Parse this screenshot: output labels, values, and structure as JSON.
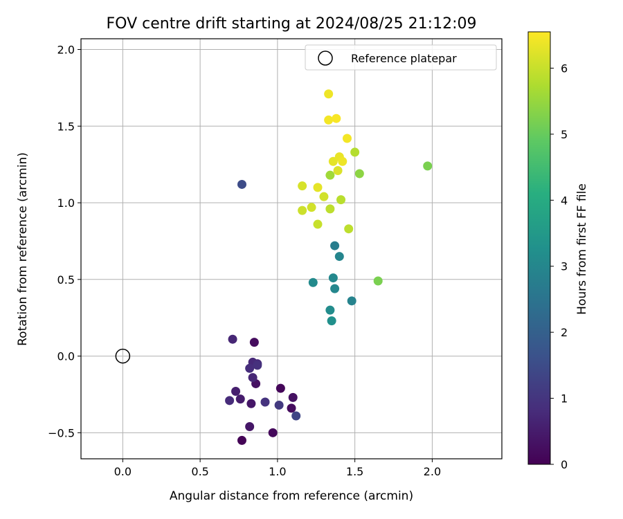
{
  "chart_data": {
    "type": "scatter",
    "title": "FOV centre drift starting at 2024/08/25 21:12:09",
    "xlabel": "Angular distance from reference (arcmin)",
    "ylabel": "Rotation from reference (arcmin)",
    "xlim": [
      -0.27,
      2.45
    ],
    "ylim": [
      -0.67,
      2.07
    ],
    "xticks": [
      0.0,
      0.5,
      1.0,
      1.5,
      2.0
    ],
    "xtick_labels": [
      "0.0",
      "0.5",
      "1.0",
      "1.5",
      "2.0"
    ],
    "yticks": [
      -0.5,
      0.0,
      0.5,
      1.0,
      1.5,
      2.0
    ],
    "ytick_labels": [
      "−0.5",
      "0.0",
      "0.5",
      "1.0",
      "1.5",
      "2.0"
    ],
    "grid": true,
    "legend": {
      "position": "top-right",
      "entries": [
        "Reference platepar"
      ]
    },
    "colorbar": {
      "label": "Hours from first FF file",
      "range": [
        0,
        6.55
      ],
      "ticks": [
        0,
        1,
        2,
        3,
        4,
        5,
        6
      ],
      "tick_labels": [
        "0",
        "1",
        "2",
        "3",
        "4",
        "5",
        "6"
      ],
      "colormap": "viridis"
    },
    "reference_point": {
      "name": "Reference platepar",
      "x": 0.0,
      "y": 0.0
    },
    "points": [
      {
        "x": 0.77,
        "y": -0.55,
        "t": 0.05
      },
      {
        "x": 0.97,
        "y": -0.5,
        "t": 0.15
      },
      {
        "x": 1.02,
        "y": -0.21,
        "t": 0.1
      },
      {
        "x": 1.1,
        "y": -0.27,
        "t": 0.3
      },
      {
        "x": 1.09,
        "y": -0.34,
        "t": 0.2
      },
      {
        "x": 0.85,
        "y": 0.09,
        "t": 0.2
      },
      {
        "x": 0.86,
        "y": -0.18,
        "t": 0.3
      },
      {
        "x": 0.83,
        "y": -0.31,
        "t": 0.4
      },
      {
        "x": 0.76,
        "y": -0.28,
        "t": 0.5
      },
      {
        "x": 0.73,
        "y": -0.23,
        "t": 0.55
      },
      {
        "x": 0.82,
        "y": -0.46,
        "t": 0.4
      },
      {
        "x": 0.71,
        "y": 0.11,
        "t": 0.7
      },
      {
        "x": 0.69,
        "y": -0.29,
        "t": 0.8
      },
      {
        "x": 0.84,
        "y": -0.04,
        "t": 0.75
      },
      {
        "x": 0.87,
        "y": -0.05,
        "t": 0.8
      },
      {
        "x": 0.82,
        "y": -0.08,
        "t": 0.85
      },
      {
        "x": 0.84,
        "y": -0.14,
        "t": 0.7
      },
      {
        "x": 0.87,
        "y": -0.06,
        "t": 0.9
      },
      {
        "x": 0.92,
        "y": -0.3,
        "t": 0.95
      },
      {
        "x": 1.01,
        "y": -0.32,
        "t": 1.1
      },
      {
        "x": 1.12,
        "y": -0.39,
        "t": 1.35
      },
      {
        "x": 0.77,
        "y": 1.12,
        "t": 1.5
      },
      {
        "x": 1.37,
        "y": 0.72,
        "t": 2.75
      },
      {
        "x": 1.4,
        "y": 0.65,
        "t": 2.95
      },
      {
        "x": 1.23,
        "y": 0.48,
        "t": 3.1
      },
      {
        "x": 1.36,
        "y": 0.51,
        "t": 3.05
      },
      {
        "x": 1.37,
        "y": 0.44,
        "t": 3.0
      },
      {
        "x": 1.48,
        "y": 0.36,
        "t": 2.9
      },
      {
        "x": 1.34,
        "y": 0.3,
        "t": 3.15
      },
      {
        "x": 1.35,
        "y": 0.23,
        "t": 3.25
      },
      {
        "x": 1.65,
        "y": 0.49,
        "t": 5.2
      },
      {
        "x": 1.97,
        "y": 1.24,
        "t": 5.2
      },
      {
        "x": 1.53,
        "y": 1.19,
        "t": 5.4
      },
      {
        "x": 1.5,
        "y": 1.33,
        "t": 5.8
      },
      {
        "x": 1.34,
        "y": 1.18,
        "t": 5.6
      },
      {
        "x": 1.41,
        "y": 1.02,
        "t": 5.85
      },
      {
        "x": 1.46,
        "y": 0.83,
        "t": 5.9
      },
      {
        "x": 1.34,
        "y": 0.96,
        "t": 5.9
      },
      {
        "x": 1.26,
        "y": 0.86,
        "t": 6.0
      },
      {
        "x": 1.16,
        "y": 0.95,
        "t": 6.05
      },
      {
        "x": 1.22,
        "y": 0.97,
        "t": 6.1
      },
      {
        "x": 1.3,
        "y": 1.04,
        "t": 6.1
      },
      {
        "x": 1.16,
        "y": 1.11,
        "t": 6.15
      },
      {
        "x": 1.26,
        "y": 1.1,
        "t": 6.3
      },
      {
        "x": 1.36,
        "y": 1.27,
        "t": 6.3
      },
      {
        "x": 1.39,
        "y": 1.21,
        "t": 6.2
      },
      {
        "x": 1.4,
        "y": 1.3,
        "t": 6.35
      },
      {
        "x": 1.42,
        "y": 1.27,
        "t": 6.4
      },
      {
        "x": 1.45,
        "y": 1.42,
        "t": 6.45
      },
      {
        "x": 1.33,
        "y": 1.54,
        "t": 6.45
      },
      {
        "x": 1.38,
        "y": 1.55,
        "t": 6.5
      },
      {
        "x": 1.33,
        "y": 1.71,
        "t": 6.4
      }
    ]
  }
}
